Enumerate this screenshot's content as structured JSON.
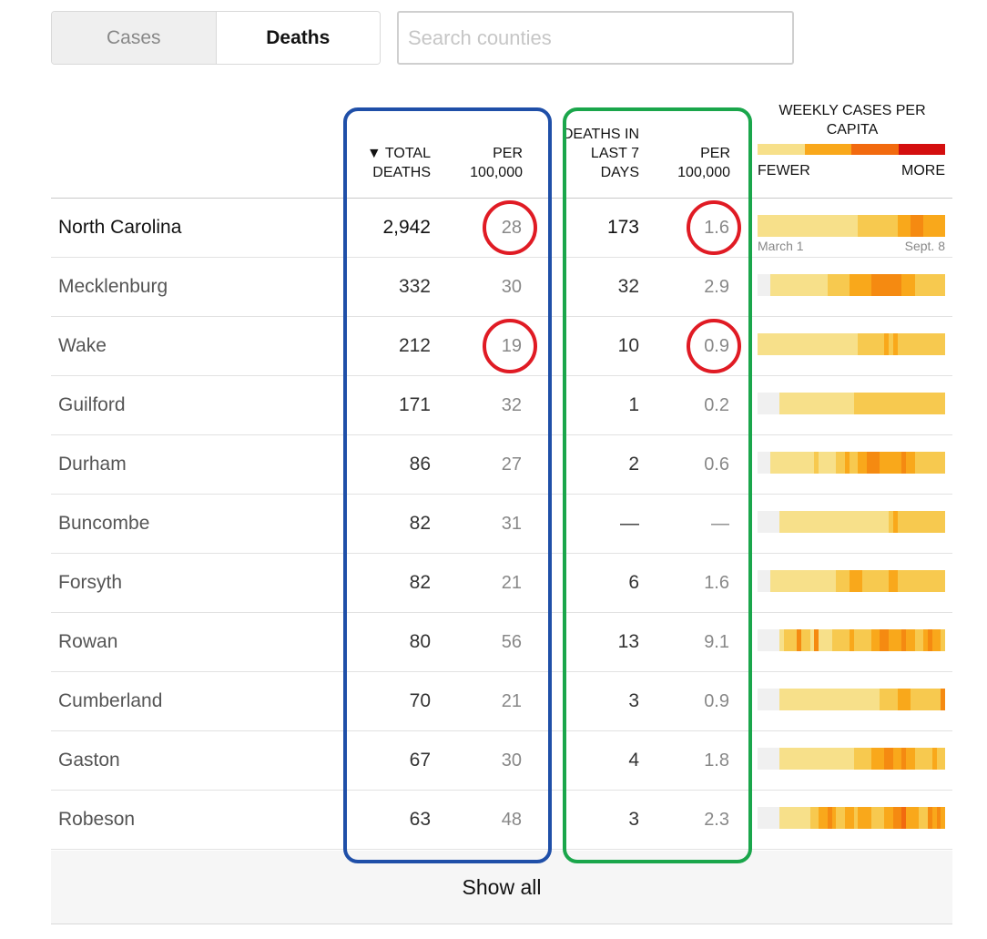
{
  "toggle": {
    "cases_label": "Cases",
    "deaths_label": "Deaths",
    "selected": "Deaths"
  },
  "search": {
    "placeholder": "Search counties",
    "value": ""
  },
  "headers": {
    "total_deaths": "▼ TOTAL DEATHS",
    "per_100k_total": "PER 100,000",
    "deaths_last_7": "DEATHS IN LAST 7 DAYS",
    "per_100k_7": "PER 100,000",
    "weekly": "WEEKLY CASES PER CAPITA",
    "fewer": "FEWER",
    "more": "MORE"
  },
  "colors": {
    "legend": [
      "#f7e08a",
      "#f9a81b",
      "#f26a0f",
      "#d40f0f"
    ],
    "box_blue": "#1f4fa8",
    "box_green": "#1aa64b",
    "circle_red": "#e01b24",
    "spark_none": "#f0f0f0",
    "spark_1": "#f7e08a",
    "spark_2": "#f7c94f",
    "spark_3": "#f9a81b",
    "spark_4": "#f58a11",
    "spark_5": "#f26a0f"
  },
  "date_range": {
    "start": "March 1",
    "end": "Sept. 8"
  },
  "rows": [
    {
      "name": "North Carolina",
      "total": "2,942",
      "per100k": "28",
      "last7": "173",
      "per100k7": "1.6",
      "state": true,
      "weekly": [
        1,
        1,
        1,
        1,
        1,
        1,
        1,
        1,
        1,
        1,
        1,
        1,
        1,
        1,
        1,
        1,
        1,
        1,
        1,
        1,
        1,
        1,
        1,
        2,
        2,
        2,
        2,
        2,
        2,
        2,
        2,
        2,
        3,
        3,
        3,
        4,
        4,
        4,
        3,
        3,
        3,
        3,
        3
      ]
    },
    {
      "name": "Mecklenburg",
      "total": "332",
      "per100k": "30",
      "last7": "32",
      "per100k7": "2.9",
      "weekly": [
        0,
        0,
        0,
        1,
        1,
        1,
        1,
        1,
        1,
        1,
        1,
        1,
        1,
        1,
        1,
        1,
        2,
        2,
        2,
        2,
        2,
        3,
        3,
        3,
        3,
        3,
        4,
        4,
        4,
        4,
        4,
        4,
        4,
        3,
        3,
        3,
        2,
        2,
        2,
        2,
        2,
        2,
        2
      ]
    },
    {
      "name": "Wake",
      "total": "212",
      "per100k": "19",
      "last7": "10",
      "per100k7": "0.9",
      "weekly": [
        1,
        1,
        1,
        1,
        1,
        1,
        1,
        1,
        1,
        1,
        1,
        1,
        1,
        1,
        1,
        1,
        1,
        1,
        1,
        1,
        1,
        1,
        1,
        2,
        2,
        2,
        2,
        2,
        2,
        3,
        2,
        3,
        2,
        2,
        2,
        2,
        2,
        2,
        2,
        2,
        2,
        2,
        2
      ]
    },
    {
      "name": "Guilford",
      "total": "171",
      "per100k": "32",
      "last7": "1",
      "per100k7": "0.2",
      "weekly": [
        0,
        0,
        0,
        0,
        0,
        1,
        1,
        1,
        1,
        1,
        1,
        1,
        1,
        1,
        1,
        1,
        1,
        1,
        1,
        1,
        1,
        1,
        2,
        2,
        2,
        2,
        2,
        2,
        2,
        2,
        2,
        2,
        2,
        2,
        2,
        2,
        2,
        2,
        2,
        2,
        2,
        2,
        2
      ]
    },
    {
      "name": "Durham",
      "total": "86",
      "per100k": "27",
      "last7": "2",
      "per100k7": "0.6",
      "weekly": [
        0,
        0,
        0,
        1,
        1,
        1,
        1,
        1,
        1,
        1,
        1,
        1,
        1,
        2,
        1,
        1,
        1,
        1,
        2,
        2,
        3,
        2,
        2,
        3,
        3,
        4,
        4,
        4,
        3,
        3,
        3,
        3,
        3,
        4,
        3,
        3,
        2,
        2,
        2,
        2,
        2,
        2,
        2
      ]
    },
    {
      "name": "Buncombe",
      "total": "82",
      "per100k": "31",
      "last7": "—",
      "per100k7": "—",
      "weekly": [
        0,
        0,
        0,
        0,
        0,
        1,
        1,
        1,
        1,
        1,
        1,
        1,
        1,
        1,
        1,
        1,
        1,
        1,
        1,
        1,
        1,
        1,
        1,
        1,
        1,
        1,
        1,
        1,
        1,
        1,
        2,
        3,
        2,
        2,
        2,
        2,
        2,
        2,
        2,
        2,
        2,
        2,
        2
      ]
    },
    {
      "name": "Forsyth",
      "total": "82",
      "per100k": "21",
      "last7": "6",
      "per100k7": "1.6",
      "weekly": [
        0,
        0,
        0,
        1,
        1,
        1,
        1,
        1,
        1,
        1,
        1,
        1,
        1,
        1,
        1,
        1,
        1,
        1,
        2,
        2,
        2,
        3,
        3,
        3,
        2,
        2,
        2,
        2,
        2,
        2,
        3,
        3,
        2,
        2,
        2,
        2,
        2,
        2,
        2,
        2,
        2,
        2,
        2
      ]
    },
    {
      "name": "Rowan",
      "total": "80",
      "per100k": "56",
      "last7": "13",
      "per100k7": "9.1",
      "weekly": [
        0,
        0,
        0,
        0,
        0,
        1,
        2,
        2,
        2,
        4,
        2,
        2,
        1,
        4,
        1,
        1,
        1,
        2,
        2,
        2,
        2,
        3,
        2,
        2,
        2,
        2,
        3,
        3,
        4,
        4,
        3,
        3,
        3,
        4,
        3,
        3,
        2,
        2,
        3,
        4,
        3,
        3,
        2
      ]
    },
    {
      "name": "Cumberland",
      "total": "70",
      "per100k": "21",
      "last7": "3",
      "per100k7": "0.9",
      "weekly": [
        0,
        0,
        0,
        0,
        0,
        1,
        1,
        1,
        1,
        1,
        1,
        1,
        1,
        1,
        1,
        1,
        1,
        1,
        1,
        1,
        1,
        1,
        1,
        1,
        1,
        1,
        1,
        1,
        2,
        2,
        2,
        2,
        3,
        3,
        3,
        2,
        2,
        2,
        2,
        2,
        2,
        2,
        4
      ]
    },
    {
      "name": "Gaston",
      "total": "67",
      "per100k": "30",
      "last7": "4",
      "per100k7": "1.8",
      "weekly": [
        0,
        0,
        0,
        0,
        0,
        1,
        1,
        1,
        1,
        1,
        1,
        1,
        1,
        1,
        1,
        1,
        1,
        1,
        1,
        1,
        1,
        1,
        2,
        2,
        2,
        2,
        3,
        3,
        3,
        4,
        4,
        3,
        3,
        4,
        3,
        3,
        2,
        2,
        2,
        2,
        3,
        2,
        2
      ]
    },
    {
      "name": "Robeson",
      "total": "63",
      "per100k": "48",
      "last7": "3",
      "per100k7": "2.3",
      "weekly": [
        0,
        0,
        0,
        0,
        0,
        1,
        1,
        1,
        1,
        1,
        1,
        1,
        2,
        2,
        3,
        3,
        4,
        3,
        2,
        2,
        3,
        3,
        2,
        3,
        3,
        3,
        2,
        2,
        2,
        3,
        3,
        4,
        4,
        5,
        3,
        3,
        3,
        2,
        2,
        4,
        3,
        4,
        3
      ]
    }
  ],
  "show_all_label": "Show all",
  "circled_values": [
    {
      "row": 0,
      "column": "per100k"
    },
    {
      "row": 0,
      "column": "per100k7"
    },
    {
      "row": 2,
      "column": "per100k"
    },
    {
      "row": 2,
      "column": "per100k7"
    }
  ]
}
